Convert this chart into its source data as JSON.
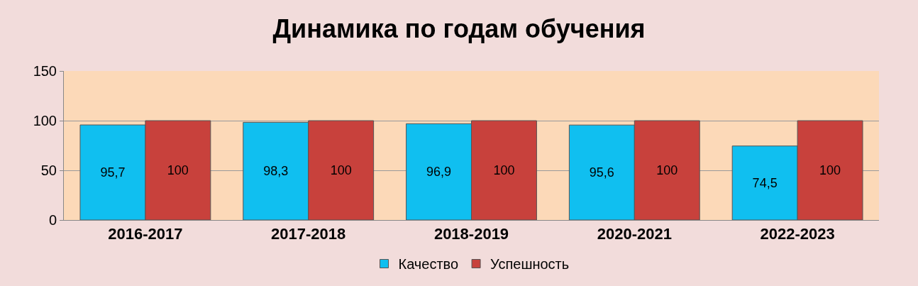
{
  "chart_data": {
    "type": "bar",
    "title": "Динамика по годам обучения",
    "categories": [
      "2016-2017",
      "2017-2018",
      "2018-2019",
      "2020-2021",
      "2022-2023"
    ],
    "series": [
      {
        "name": "Качество",
        "color": "#10bff0",
        "values": [
          95.7,
          98.3,
          96.9,
          95.6,
          74.5
        ],
        "value_labels": [
          "95,7",
          "98,3",
          "96,9",
          "95,6",
          "74,5"
        ]
      },
      {
        "name": "Успешность",
        "color": "#c8413c",
        "values": [
          100,
          100,
          100,
          100,
          100
        ],
        "value_labels": [
          "100",
          "100",
          "100",
          "100",
          "100"
        ]
      }
    ],
    "ylim": [
      0,
      150
    ],
    "yticks": [
      0,
      50,
      100,
      150
    ],
    "grid": "y",
    "legend": "bottom"
  }
}
